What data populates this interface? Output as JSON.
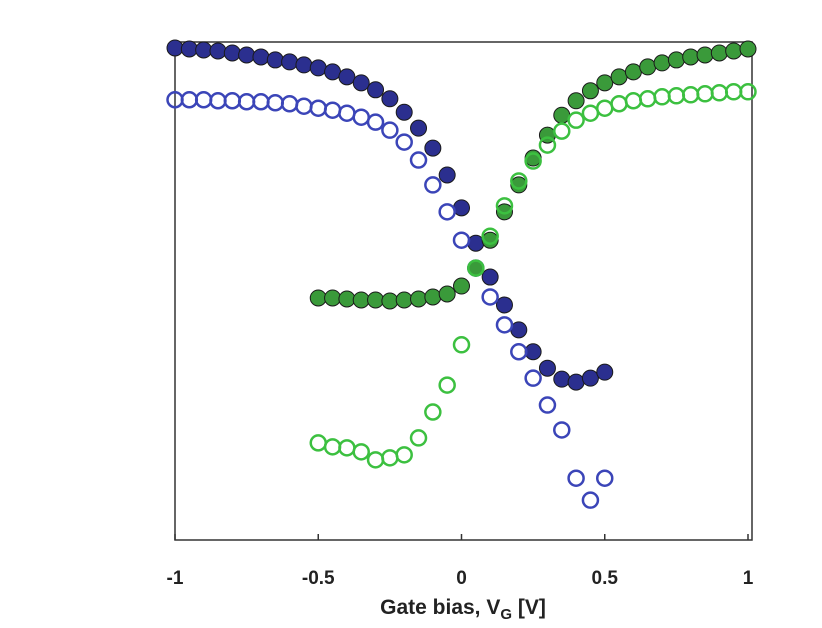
{
  "chart_data": {
    "type": "scatter",
    "xlabel": [
      "Gate bias, V",
      "G",
      " [V]"
    ],
    "xlim": [
      -1,
      1
    ],
    "xticks": [
      -1,
      -0.5,
      0,
      0.5,
      1
    ],
    "ylim": [
      0,
      100
    ],
    "series": [
      {
        "color": "#2b2f8f",
        "marker": "filled",
        "x": [
          -1,
          -0.95,
          -0.9,
          -0.85,
          -0.8,
          -0.75,
          -0.7,
          -0.65,
          -0.6,
          -0.55,
          -0.5,
          -0.45,
          -0.4,
          -0.35,
          -0.3,
          -0.25,
          -0.2,
          -0.15,
          -0.1,
          -0.05,
          0,
          0.05,
          0.1,
          0.15,
          0.2,
          0.25,
          0.3,
          0.35,
          0.4,
          0.45,
          0.5
        ],
        "values": [
          98.8,
          98.6,
          98.4,
          98.2,
          97.8,
          97.4,
          97.0,
          96.4,
          96.0,
          95.4,
          94.8,
          94.0,
          93.0,
          91.8,
          90.4,
          88.6,
          85.9,
          82.7,
          78.7,
          73.3,
          66.7,
          59.6,
          52.8,
          47.2,
          42.2,
          37.8,
          34.5,
          32.3,
          31.7,
          32.5,
          33.7
        ]
      },
      {
        "color": "#3b45b8",
        "marker": "open",
        "x": [
          -1,
          -0.95,
          -0.9,
          -0.85,
          -0.8,
          -0.75,
          -0.7,
          -0.65,
          -0.6,
          -0.55,
          -0.5,
          -0.45,
          -0.4,
          -0.35,
          -0.3,
          -0.25,
          -0.2,
          -0.15,
          -0.1,
          -0.05,
          0,
          0.05,
          0.1,
          0.15,
          0.2,
          0.25,
          0.3,
          0.35,
          0.4,
          0.45,
          0.5
        ],
        "values": [
          88.4,
          88.4,
          88.4,
          88.2,
          88.2,
          88.0,
          88.0,
          87.8,
          87.6,
          87.1,
          86.7,
          86.3,
          85.7,
          84.9,
          83.9,
          82.3,
          79.9,
          76.3,
          71.3,
          65.9,
          60.2,
          54.6,
          48.8,
          43.2,
          37.8,
          32.5,
          27.1,
          22.1,
          12.4,
          8.0,
          12.4
        ]
      },
      {
        "color": "#3a9a3a",
        "marker": "filled",
        "x": [
          -0.5,
          -0.45,
          -0.4,
          -0.35,
          -0.3,
          -0.25,
          -0.2,
          -0.15,
          -0.1,
          -0.05,
          0,
          0.05,
          0.1,
          0.15,
          0.2,
          0.25,
          0.3,
          0.35,
          0.4,
          0.45,
          0.5,
          0.55,
          0.6,
          0.65,
          0.7,
          0.75,
          0.8,
          0.85,
          0.9,
          0.95,
          1
        ],
        "values": [
          48.6,
          48.6,
          48.4,
          48.2,
          48.2,
          48.0,
          48.2,
          48.4,
          48.8,
          49.4,
          51.0,
          54.6,
          60.2,
          65.9,
          71.3,
          76.7,
          81.3,
          85.3,
          88.2,
          90.2,
          91.8,
          93.0,
          94.0,
          95.0,
          95.8,
          96.4,
          97.0,
          97.4,
          97.8,
          98.2,
          98.6
        ]
      },
      {
        "color": "#3cc040",
        "marker": "open",
        "x": [
          -0.5,
          -0.45,
          -0.4,
          -0.35,
          -0.3,
          -0.25,
          -0.2,
          -0.15,
          -0.1,
          -0.05,
          0,
          0.05,
          0.1,
          0.15,
          0.2,
          0.25,
          0.3,
          0.35,
          0.4,
          0.45,
          0.5,
          0.55,
          0.6,
          0.65,
          0.7,
          0.75,
          0.8,
          0.85,
          0.9,
          0.95,
          1
        ],
        "values": [
          19.5,
          18.7,
          18.5,
          17.7,
          16.1,
          16.5,
          17.1,
          20.5,
          25.7,
          31.1,
          39.2,
          54.6,
          61.0,
          67.1,
          72.1,
          76.1,
          79.3,
          82.1,
          84.3,
          85.7,
          86.7,
          87.6,
          88.2,
          88.6,
          89.0,
          89.2,
          89.4,
          89.6,
          89.8,
          90.0,
          90.0
        ]
      }
    ]
  }
}
